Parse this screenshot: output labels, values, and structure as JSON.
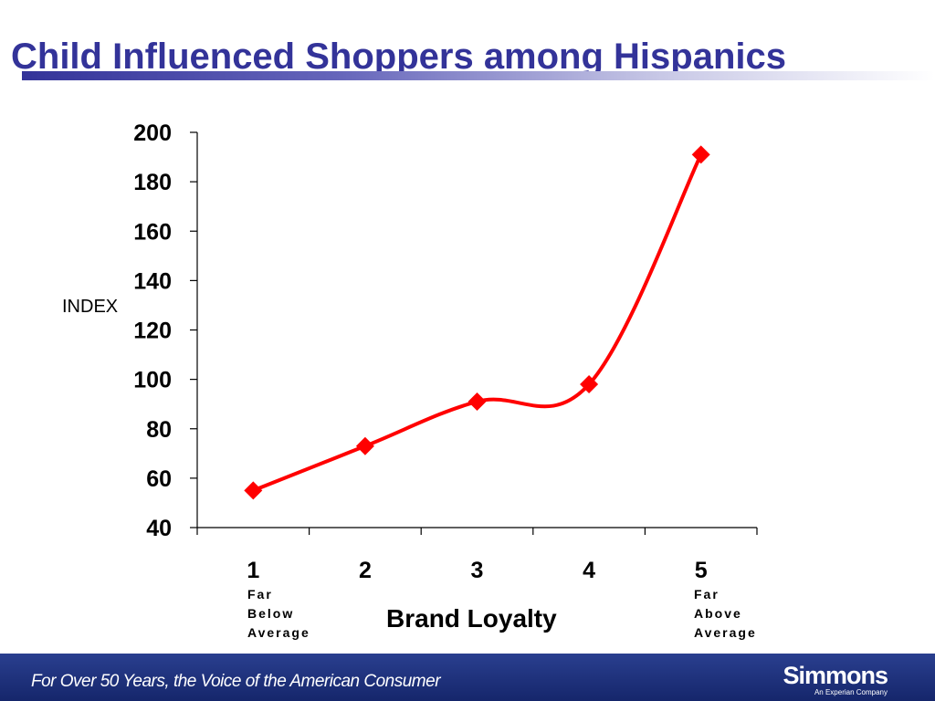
{
  "slide": {
    "title": "Child Influenced Shoppers among Hispanics",
    "colors": {
      "title": "#333399",
      "series": "#ff0000",
      "footer": "#1a2c78"
    }
  },
  "chart_data": {
    "type": "line",
    "title": "",
    "ylabel": "INDEX",
    "xlabel": "Brand Loyalty",
    "categories": [
      "1",
      "2",
      "3",
      "4",
      "5"
    ],
    "series": [
      {
        "values": [
          55,
          73,
          91,
          98,
          191
        ]
      }
    ],
    "ylim": [
      40,
      200
    ],
    "yticks": [
      "40",
      "60",
      "80",
      "100",
      "120",
      "140",
      "160",
      "180",
      "200"
    ],
    "marker": "diamond",
    "smooth": true,
    "grid": false,
    "legend": "none",
    "annotations": {
      "low_end": [
        "Far",
        "Below",
        "Average"
      ],
      "high_end": [
        "Far",
        "Above",
        "Average"
      ]
    }
  },
  "footer": {
    "tagline": "For Over 50 Years, the Voice of the American Consumer",
    "brand": "Simmons",
    "brand_sub": "An Experian Company"
  }
}
